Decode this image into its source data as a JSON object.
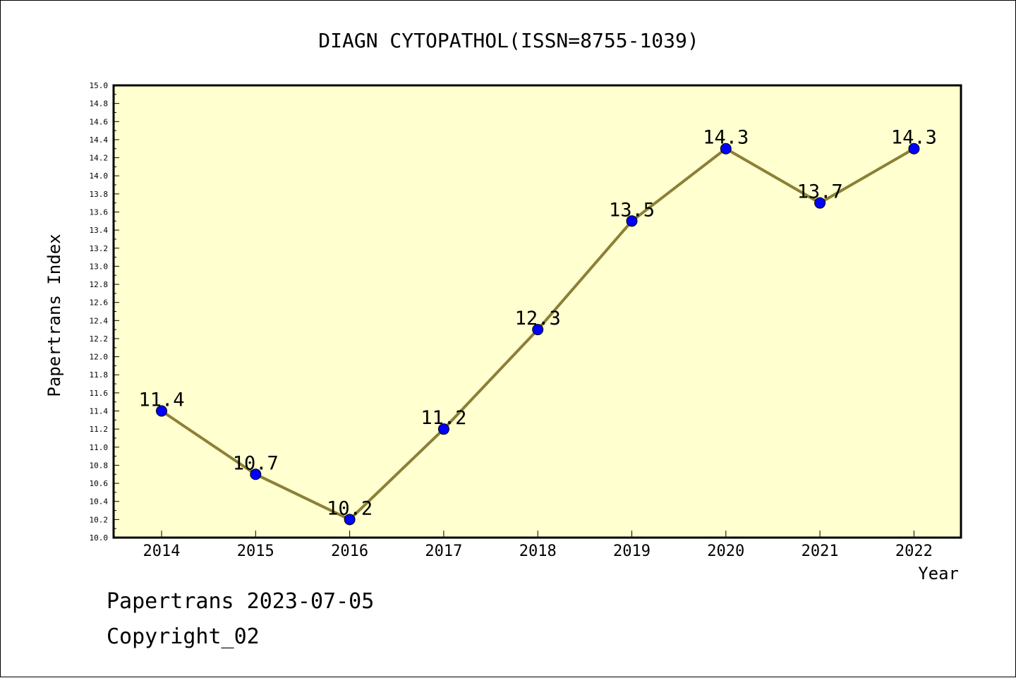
{
  "chart_data": {
    "type": "line",
    "title": "DIAGN CYTOPATHOL(ISSN=8755-1039)",
    "xlabel": "Year",
    "ylabel": "Papertrans Index",
    "categories": [
      "2014",
      "2015",
      "2016",
      "2017",
      "2018",
      "2019",
      "2020",
      "2021",
      "2022"
    ],
    "series": [
      {
        "values": [
          11.4,
          10.7,
          10.2,
          11.2,
          12.3,
          13.5,
          14.3,
          13.7,
          14.3
        ]
      }
    ],
    "data_labels": [
      "11.4",
      "10.7",
      "10.2",
      "11.2",
      "12.3",
      "13.5",
      "14.3",
      "13.7",
      "14.3"
    ],
    "ylim": [
      10.0,
      15.0
    ],
    "y_ticks": [
      "10.0",
      "10.2",
      "10.4",
      "10.6",
      "10.8",
      "11.0",
      "11.2",
      "11.4",
      "11.6",
      "11.8",
      "12.0",
      "12.2",
      "12.4",
      "12.6",
      "12.8",
      "13.0",
      "13.2",
      "13.4",
      "13.6",
      "13.8",
      "14.0",
      "14.2",
      "14.4",
      "14.6",
      "14.8",
      "15.0"
    ],
    "grid": false,
    "colors": {
      "plot_background": "#ffffd0",
      "line": "#8b8035",
      "marker": "#0000ff"
    }
  },
  "footer": {
    "line1": "Papertrans 2023-07-05",
    "line2": "Copyright_02"
  }
}
